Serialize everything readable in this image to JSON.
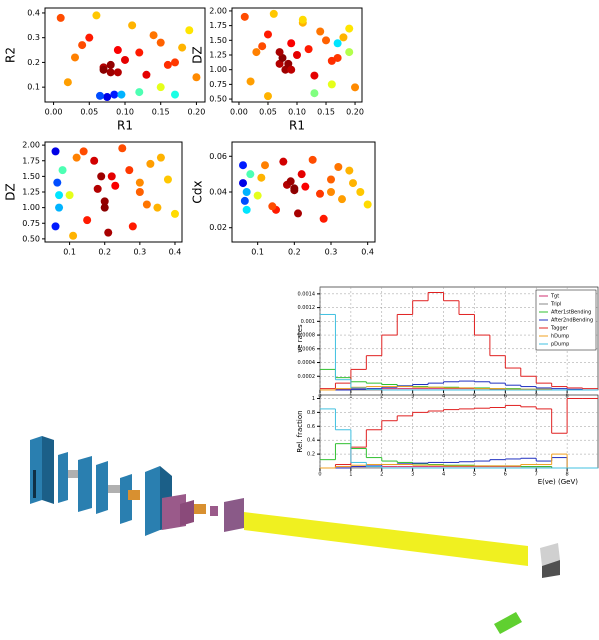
{
  "chart_data": [
    {
      "type": "scatter",
      "xlabel": "R1",
      "ylabel": "R2",
      "colormap": "jet",
      "clim": [
        0,
        1
      ],
      "xlim": [
        -0.012,
        0.212
      ],
      "ylim": [
        0.04,
        0.42
      ],
      "xticks": [
        {
          "value": 0,
          "label": "0.00"
        },
        0.05,
        {
          "value": 0.1,
          "label": "0.10"
        },
        0.15,
        {
          "value": 0.2,
          "label": "0.20"
        }
      ],
      "yticks": [
        0.1,
        0.2,
        0.3,
        0.4
      ],
      "x": [
        0.01,
        0.03,
        0.05,
        0.07,
        0.09,
        0.11,
        0.13,
        0.15,
        0.17,
        0.19,
        0.02,
        0.04,
        0.06,
        0.08,
        0.1,
        0.12,
        0.14,
        0.16,
        0.18,
        0.2,
        0.075,
        0.085,
        0.065,
        0.095,
        0.07,
        0.08,
        0.09,
        0.12,
        0.17,
        0.15
      ],
      "y": [
        0.38,
        0.22,
        0.3,
        0.18,
        0.25,
        0.35,
        0.15,
        0.28,
        0.2,
        0.33,
        0.12,
        0.27,
        0.39,
        0.16,
        0.21,
        0.24,
        0.31,
        0.19,
        0.26,
        0.14,
        0.06,
        0.07,
        0.065,
        0.07,
        0.17,
        0.19,
        0.16,
        0.08,
        0.07,
        0.1
      ],
      "c": [
        0.8,
        0.75,
        0.85,
        0.95,
        0.88,
        0.7,
        0.9,
        0.78,
        0.82,
        0.65,
        0.72,
        0.8,
        0.68,
        0.97,
        0.9,
        0.85,
        0.76,
        0.83,
        0.7,
        0.74,
        0.1,
        0.15,
        0.2,
        0.3,
        0.99,
        0.98,
        0.95,
        0.45,
        0.4,
        0.6
      ]
    },
    {
      "type": "scatter",
      "xlabel": "R1",
      "ylabel": "DZ",
      "colormap": "jet",
      "clim": [
        0,
        1
      ],
      "xlim": [
        -0.012,
        0.212
      ],
      "ylim": [
        0.45,
        2.05
      ],
      "xticks": [
        {
          "value": 0,
          "label": "0.00"
        },
        0.05,
        {
          "value": 0.1,
          "label": "0.10"
        },
        0.15,
        {
          "value": 0.2,
          "label": "0.20"
        }
      ],
      "yticks": [
        {
          "value": 0.5,
          "label": "0.50"
        },
        0.75,
        {
          "value": 1,
          "label": "1.00"
        },
        1.25,
        {
          "value": 1.5,
          "label": "1.50"
        },
        1.75,
        {
          "value": 2,
          "label": "2.00"
        }
      ],
      "x": [
        0.01,
        0.03,
        0.05,
        0.07,
        0.09,
        0.11,
        0.13,
        0.15,
        0.17,
        0.19,
        0.02,
        0.04,
        0.06,
        0.08,
        0.1,
        0.12,
        0.14,
        0.16,
        0.18,
        0.2,
        0.075,
        0.085,
        0.07,
        0.09,
        0.13,
        0.17,
        0.16,
        0.05,
        0.11,
        0.19
      ],
      "y": [
        1.9,
        1.3,
        1.6,
        1.1,
        1.45,
        1.8,
        0.9,
        1.5,
        1.2,
        1.7,
        0.8,
        1.4,
        1.95,
        1.0,
        1.25,
        1.35,
        1.65,
        1.15,
        1.55,
        0.7,
        1.2,
        1.1,
        1.3,
        1.0,
        0.6,
        1.45,
        0.75,
        0.55,
        1.85,
        1.3
      ],
      "c": [
        0.8,
        0.75,
        0.85,
        0.95,
        0.88,
        0.7,
        0.9,
        0.78,
        0.82,
        0.65,
        0.72,
        0.8,
        0.68,
        0.97,
        0.9,
        0.85,
        0.76,
        0.83,
        0.7,
        0.74,
        0.99,
        0.98,
        0.96,
        0.94,
        0.5,
        0.35,
        0.6,
        0.7,
        0.66,
        0.55
      ]
    },
    {
      "type": "scatter",
      "ylabel": "DZ",
      "colormap": "jet",
      "clim": [
        0,
        1
      ],
      "xlim": [
        0.03,
        0.42
      ],
      "ylim": [
        0.45,
        2.05
      ],
      "xticks": [
        0.1,
        0.2,
        0.3,
        0.4
      ],
      "yticks": [
        {
          "value": 0.5,
          "label": "0.50"
        },
        0.75,
        {
          "value": 1,
          "label": "1.00"
        },
        1.25,
        {
          "value": 1.5,
          "label": "1.50"
        },
        1.75,
        {
          "value": 2,
          "label": "2.00"
        }
      ],
      "x": [
        0.06,
        0.065,
        0.07,
        0.08,
        0.1,
        0.12,
        0.15,
        0.18,
        0.2,
        0.22,
        0.25,
        0.28,
        0.3,
        0.33,
        0.35,
        0.38,
        0.4,
        0.19,
        0.21,
        0.17,
        0.23,
        0.27,
        0.32,
        0.14,
        0.11,
        0.36,
        0.06,
        0.07,
        0.2,
        0.3
      ],
      "y": [
        1.9,
        1.4,
        1.0,
        1.6,
        1.2,
        1.8,
        0.8,
        1.3,
        1.1,
        1.5,
        1.95,
        0.7,
        1.25,
        1.7,
        1.0,
        1.45,
        0.9,
        1.5,
        0.6,
        1.75,
        1.35,
        1.6,
        1.05,
        1.9,
        0.55,
        1.8,
        0.7,
        1.2,
        1.0,
        1.4
      ],
      "c": [
        0.1,
        0.2,
        0.3,
        0.45,
        0.6,
        0.75,
        0.85,
        0.95,
        0.98,
        0.9,
        0.8,
        0.85,
        0.78,
        0.72,
        0.7,
        0.68,
        0.66,
        0.97,
        0.96,
        0.92,
        0.88,
        0.82,
        0.76,
        0.8,
        0.7,
        0.7,
        0.15,
        0.35,
        0.99,
        0.74
      ]
    },
    {
      "type": "scatter",
      "ylabel": "Cdx",
      "colormap": "jet",
      "clim": [
        0,
        1
      ],
      "xlim": [
        0.03,
        0.42
      ],
      "ylim": [
        0.012,
        0.068
      ],
      "xticks": [
        0.1,
        0.2,
        0.3,
        0.4
      ],
      "yticks": [
        0.02,
        0.04,
        0.06
      ],
      "x": [
        0.06,
        0.065,
        0.07,
        0.08,
        0.1,
        0.12,
        0.15,
        0.18,
        0.2,
        0.22,
        0.25,
        0.28,
        0.3,
        0.33,
        0.35,
        0.38,
        0.4,
        0.19,
        0.21,
        0.17,
        0.23,
        0.27,
        0.32,
        0.14,
        0.11,
        0.36,
        0.06,
        0.07,
        0.2,
        0.3
      ],
      "y": [
        0.045,
        0.035,
        0.04,
        0.05,
        0.038,
        0.055,
        0.03,
        0.044,
        0.041,
        0.05,
        0.058,
        0.025,
        0.047,
        0.036,
        0.052,
        0.04,
        0.033,
        0.046,
        0.028,
        0.057,
        0.043,
        0.039,
        0.054,
        0.032,
        0.048,
        0.045,
        0.055,
        0.03,
        0.042,
        0.04
      ],
      "c": [
        0.1,
        0.2,
        0.3,
        0.45,
        0.6,
        0.75,
        0.85,
        0.95,
        0.98,
        0.9,
        0.8,
        0.85,
        0.78,
        0.72,
        0.7,
        0.68,
        0.66,
        0.97,
        0.96,
        0.92,
        0.88,
        0.82,
        0.76,
        0.8,
        0.7,
        0.7,
        0.15,
        0.35,
        0.99,
        0.74
      ]
    },
    {
      "type": "histogram",
      "ylabel": "νe rates",
      "legend": "upper right",
      "grid": true,
      "bins": [
        0,
        0.5,
        1,
        1.5,
        2,
        2.5,
        3,
        3.5,
        4,
        4.5,
        5,
        5.5,
        6,
        6.5,
        7,
        7.5,
        8,
        8.5,
        9
      ],
      "xlim": [
        0,
        9
      ],
      "xticks": [
        0,
        1,
        2,
        3,
        4,
        5,
        6,
        7,
        8
      ],
      "ylim": [
        0,
        0.0015
      ],
      "yticks": [
        0.0002,
        0.0004,
        0.0006,
        0.0008,
        0.001,
        0.0012,
        0.0014
      ],
      "series": [
        {
          "name": "Tgt",
          "color": "#d03070",
          "values": [
            0,
            1e-05,
            2e-05,
            2e-05,
            2e-05,
            2e-05,
            2e-05,
            2e-05,
            2e-05,
            2e-05,
            2e-05,
            1e-05,
            1e-05,
            1e-05,
            1e-05,
            0,
            0,
            0
          ]
        },
        {
          "name": "Tripl",
          "color": "#888888",
          "values": [
            0,
            0,
            0,
            0,
            0,
            0,
            0,
            0,
            0,
            0,
            0,
            0,
            0,
            0,
            0,
            0,
            0,
            0
          ]
        },
        {
          "name": "After1stBending",
          "color": "#30c030",
          "values": [
            0.0003,
            0.00018,
            0.00012,
            0.0001,
            8e-05,
            6e-05,
            5e-05,
            4e-05,
            4e-05,
            3e-05,
            3e-05,
            2e-05,
            2e-05,
            1e-05,
            1e-05,
            0,
            0,
            0
          ]
        },
        {
          "name": "After2ndBending",
          "color": "#2030c0",
          "values": [
            0,
            0,
            1e-05,
            2e-05,
            4e-05,
            6e-05,
            8e-05,
            0.0001,
            0.00012,
            0.00013,
            0.00012,
            0.0001,
            7e-05,
            5e-05,
            3e-05,
            2e-05,
            1e-05,
            0
          ]
        },
        {
          "name": "Tagger",
          "color": "#e02020",
          "values": [
            2e-05,
            0.0001,
            0.0003,
            0.0005,
            0.0008,
            0.0011,
            0.0013,
            0.00142,
            0.0013,
            0.0011,
            0.0008,
            0.0005,
            0.00032,
            0.0002,
            0.0001,
            5e-05,
            3e-05,
            2e-05
          ]
        },
        {
          "name": "hDump",
          "color": "#f0a020",
          "values": [
            0,
            2e-05,
            4e-05,
            5e-05,
            5e-05,
            5e-05,
            4e-05,
            4e-05,
            3e-05,
            3e-05,
            2e-05,
            2e-05,
            1e-05,
            1e-05,
            1e-05,
            0,
            0,
            0
          ]
        },
        {
          "name": "pDump",
          "color": "#40c0e0",
          "values": [
            0.0011,
            0.00015,
            3e-05,
            1e-05,
            0,
            0,
            0,
            0,
            0,
            0,
            0,
            0,
            0,
            0,
            0,
            0,
            0,
            0
          ]
        }
      ]
    },
    {
      "type": "histogram",
      "ylabel": "Rel. fraction",
      "xlabel": "E(νe) (GeV)",
      "grid": true,
      "bins": [
        0,
        0.5,
        1,
        1.5,
        2,
        2.5,
        3,
        3.5,
        4,
        4.5,
        5,
        5.5,
        6,
        6.5,
        7,
        7.5,
        8,
        8.5,
        9
      ],
      "xlim": [
        0,
        9
      ],
      "xticks": [
        0,
        1,
        2,
        3,
        4,
        5,
        6,
        7,
        8
      ],
      "ylim": [
        0,
        1.05
      ],
      "yticks": [
        0.2,
        0.4,
        0.6,
        0.8,
        1
      ],
      "series": [
        {
          "color": "#d03070",
          "values": [
            0,
            0.02,
            0.02,
            0.02,
            0.02,
            0.02,
            0.02,
            0.02,
            0.02,
            0.02,
            0.02,
            0.02,
            0.02,
            0.02,
            0.02,
            0,
            0,
            0
          ]
        },
        {
          "color": "#888888",
          "values": [
            0,
            0,
            0,
            0,
            0,
            0,
            0,
            0,
            0,
            0,
            0,
            0,
            0,
            0,
            0,
            0,
            0,
            0
          ]
        },
        {
          "color": "#30c030",
          "values": [
            0.12,
            0.35,
            0.28,
            0.15,
            0.1,
            0.08,
            0.06,
            0.05,
            0.04,
            0.04,
            0.03,
            0.03,
            0.03,
            0.02,
            0.02,
            0,
            0,
            0
          ]
        },
        {
          "color": "#2030c0",
          "values": [
            0,
            0,
            0.02,
            0.03,
            0.05,
            0.06,
            0.07,
            0.08,
            0.08,
            0.09,
            0.1,
            0.12,
            0.13,
            0.14,
            0.1,
            0.15,
            0,
            0
          ]
        },
        {
          "color": "#e02020",
          "values": [
            0,
            0.05,
            0.3,
            0.55,
            0.68,
            0.75,
            0.8,
            0.82,
            0.84,
            0.85,
            0.86,
            0.87,
            0.9,
            0.88,
            0.85,
            0.5,
            1,
            1
          ]
        },
        {
          "color": "#f0a020",
          "values": [
            0,
            0.02,
            0.04,
            0.05,
            0.05,
            0.05,
            0.04,
            0.04,
            0.03,
            0.03,
            0.03,
            0.03,
            0.03,
            0.05,
            0.05,
            0.2,
            0,
            0
          ]
        },
        {
          "color": "#40c0e0",
          "values": [
            0.85,
            0.55,
            0.08,
            0.02,
            0,
            0,
            0,
            0,
            0,
            0,
            0,
            0,
            0,
            0,
            0,
            0,
            0,
            0
          ]
        }
      ]
    }
  ]
}
